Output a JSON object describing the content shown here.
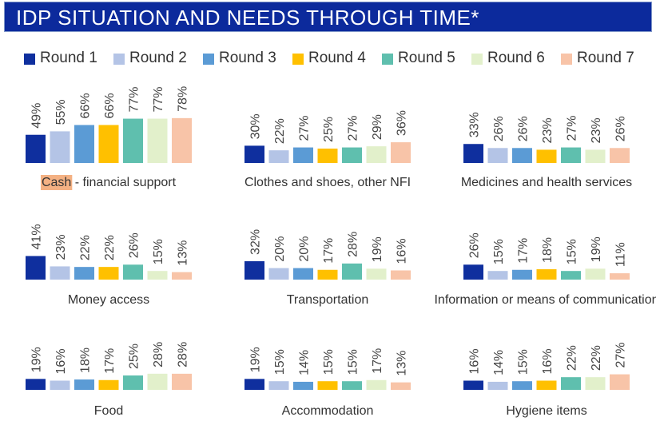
{
  "title": "IDP SITUATION AND NEEDS THROUGH TIME*",
  "legend": [
    {
      "label": "Round 1",
      "color": "#0f2f9e"
    },
    {
      "label": "Round 2",
      "color": "#b4c4e6"
    },
    {
      "label": "Round 3",
      "color": "#5b9bd5"
    },
    {
      "label": "Round 4",
      "color": "#ffc000"
    },
    {
      "label": "Round 5",
      "color": "#5fbfae"
    },
    {
      "label": "Round 6",
      "color": "#e2f0cb"
    },
    {
      "label": "Round 7",
      "color": "#f8c4a8"
    }
  ],
  "chart_data": {
    "type": "bar",
    "series_names": [
      "Round 1",
      "Round 2",
      "Round 3",
      "Round 4",
      "Round 5",
      "Round 6",
      "Round 7"
    ],
    "unit": "%",
    "ylim": [
      0,
      100
    ],
    "panels": [
      {
        "label_highlight": "Cash",
        "label_rest": " - financial support",
        "values": [
          49,
          55,
          66,
          66,
          77,
          77,
          78
        ]
      },
      {
        "label": "Clothes and shoes, other NFI",
        "values": [
          30,
          22,
          27,
          25,
          27,
          29,
          36
        ]
      },
      {
        "label": "Medicines and health services",
        "values": [
          33,
          26,
          26,
          23,
          27,
          23,
          26
        ]
      },
      {
        "label": "Money access",
        "values": [
          41,
          23,
          22,
          22,
          26,
          15,
          13
        ]
      },
      {
        "label": "Transportation",
        "values": [
          32,
          20,
          20,
          17,
          28,
          19,
          16
        ]
      },
      {
        "label": "Information or means of communication",
        "values": [
          26,
          15,
          17,
          18,
          15,
          19,
          11
        ]
      },
      {
        "label": "Food",
        "values": [
          19,
          16,
          18,
          17,
          25,
          28,
          28
        ]
      },
      {
        "label": "Accommodation",
        "values": [
          19,
          15,
          14,
          15,
          15,
          17,
          13
        ]
      },
      {
        "label": "Hygiene items",
        "values": [
          16,
          14,
          15,
          16,
          22,
          22,
          27
        ]
      }
    ]
  }
}
